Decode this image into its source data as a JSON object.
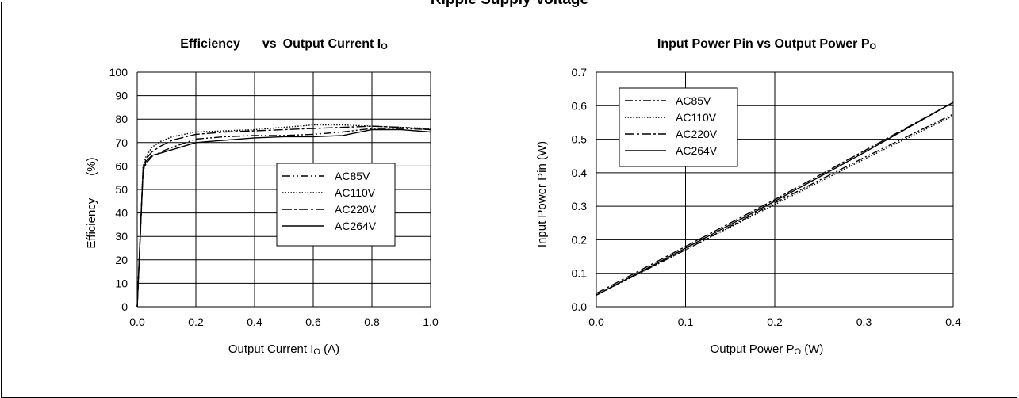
{
  "page": {
    "heading": "Ripple Supply Voltage"
  },
  "chart_data": [
    {
      "id": "eff",
      "type": "line",
      "title_parts": {
        "main": "Efficiency",
        "vs": "vs",
        "rest": "Output Current I",
        "sub": "O"
      },
      "xlabel_parts": {
        "main": "Output Current I",
        "sub": "O",
        "unit": " (A)"
      },
      "ylabel_parts": {
        "main": "Efficiency",
        "unit": "(%)"
      },
      "xlim": [
        0,
        1.0
      ],
      "ylim": [
        0,
        100
      ],
      "xticks": [
        "0.0",
        "0.2",
        "0.4",
        "0.6",
        "0.8",
        "1.0"
      ],
      "yticks": [
        "0",
        "10",
        "20",
        "30",
        "40",
        "50",
        "60",
        "70",
        "80",
        "90",
        "100"
      ],
      "grid": true,
      "legend_position": "center-right",
      "series": [
        {
          "name": "AC85V",
          "dash": "dash-dot-dot",
          "x": [
            0.0,
            0.02,
            0.03,
            0.05,
            0.08,
            0.12,
            0.2,
            0.3,
            0.4,
            0.5,
            0.6,
            0.7,
            0.8,
            0.9,
            1.0
          ],
          "y": [
            0,
            58,
            61,
            64,
            66,
            68,
            71.5,
            72.5,
            73,
            73,
            73.5,
            74.5,
            76,
            76,
            75.5
          ]
        },
        {
          "name": "AC110V",
          "dash": "dotted",
          "x": [
            0.0,
            0.02,
            0.03,
            0.05,
            0.08,
            0.12,
            0.2,
            0.3,
            0.4,
            0.5,
            0.6,
            0.7,
            0.8,
            0.9,
            1.0
          ],
          "y": [
            0,
            60,
            64,
            68,
            70.5,
            72.5,
            74.5,
            75,
            75.5,
            76.5,
            77.5,
            77.5,
            77,
            76.5,
            76
          ]
        },
        {
          "name": "AC220V",
          "dash": "dash-dot",
          "x": [
            0.0,
            0.02,
            0.03,
            0.05,
            0.08,
            0.12,
            0.2,
            0.3,
            0.4,
            0.5,
            0.6,
            0.7,
            0.8,
            0.9,
            1.0
          ],
          "y": [
            0,
            59,
            63,
            66,
            68.5,
            71,
            73.5,
            74.5,
            75,
            75.5,
            76,
            76.5,
            77,
            76.5,
            75.5
          ]
        },
        {
          "name": "AC264V",
          "dash": "solid",
          "x": [
            0.0,
            0.02,
            0.03,
            0.05,
            0.08,
            0.12,
            0.2,
            0.3,
            0.4,
            0.5,
            0.6,
            0.7,
            0.8,
            0.9,
            1.0
          ],
          "y": [
            0,
            58,
            62,
            64.5,
            65.5,
            67,
            70,
            71,
            72,
            72.5,
            72.5,
            73,
            75.5,
            75.5,
            74.5
          ]
        }
      ]
    },
    {
      "id": "pin",
      "type": "line",
      "title_parts": {
        "main": "Input Power Pin vs Output Power P",
        "sub": "O"
      },
      "xlabel_parts": {
        "main": "Output Power P",
        "sub": "O",
        "unit": " (W)"
      },
      "ylabel_parts": {
        "main": "Input Power Pin (W)"
      },
      "xlim": [
        0,
        0.4
      ],
      "ylim": [
        0,
        0.7
      ],
      "xticks": [
        "0.0",
        "0.1",
        "0.2",
        "0.3",
        "0.4"
      ],
      "yticks": [
        "0.0",
        "0.1",
        "0.2",
        "0.3",
        "0.4",
        "0.5",
        "0.6",
        "0.7"
      ],
      "grid": true,
      "legend_position": "top-left",
      "series": [
        {
          "name": "AC85V",
          "dash": "dash-dot-dot",
          "x": [
            0.0,
            0.1,
            0.2,
            0.3,
            0.4
          ],
          "y": [
            0.035,
            0.17,
            0.31,
            0.445,
            0.575
          ]
        },
        {
          "name": "AC110V",
          "dash": "dotted",
          "x": [
            0.0,
            0.1,
            0.2,
            0.3,
            0.4
          ],
          "y": [
            0.035,
            0.17,
            0.305,
            0.44,
            0.57
          ]
        },
        {
          "name": "AC220V",
          "dash": "dash-dot",
          "x": [
            0.0,
            0.1,
            0.2,
            0.3,
            0.4
          ],
          "y": [
            0.04,
            0.18,
            0.32,
            0.465,
            0.61
          ]
        },
        {
          "name": "AC264V",
          "dash": "solid",
          "x": [
            0.0,
            0.1,
            0.2,
            0.3,
            0.4
          ],
          "y": [
            0.035,
            0.175,
            0.315,
            0.46,
            0.61
          ]
        }
      ]
    }
  ]
}
